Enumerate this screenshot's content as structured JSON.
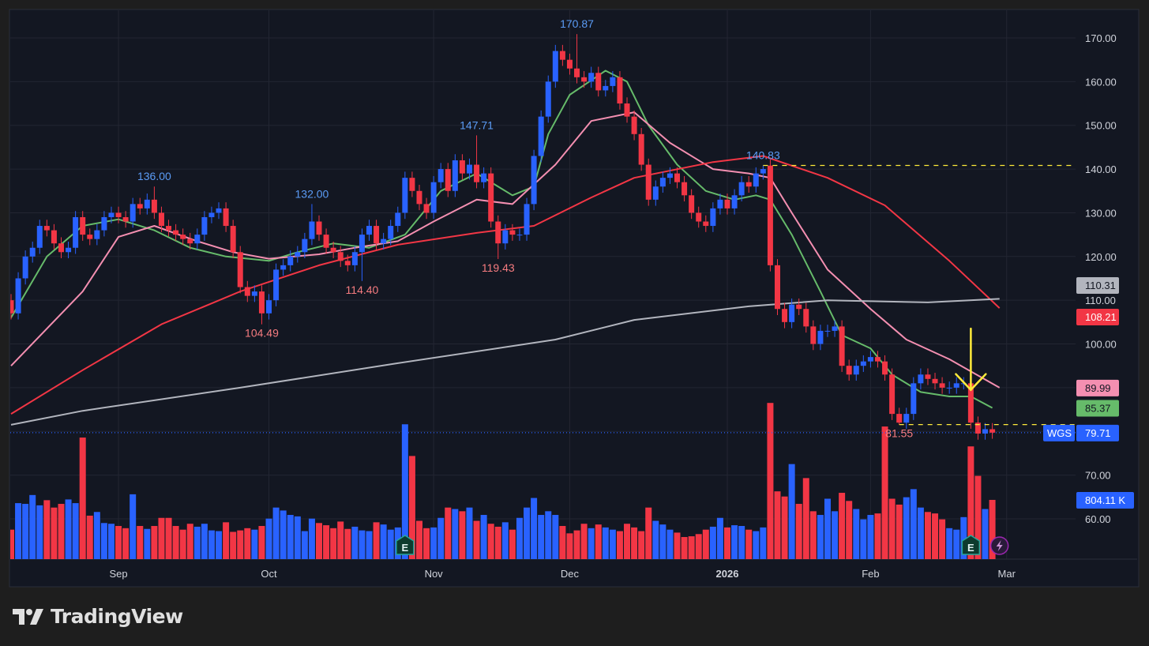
{
  "brand": {
    "name": "TradingView"
  },
  "symbol": "WGS",
  "colors": {
    "up": "#2962ff",
    "down": "#f23645",
    "ema_short": "#66bb6a",
    "ema_mid": "#f48fb1",
    "ma_50": "#f23645",
    "ma_200": "#b2b5be",
    "annotation": "#ffeb3b",
    "background": "#131722"
  },
  "chart_data": {
    "type": "candlestick",
    "y_axis": {
      "range": [
        55,
        175
      ],
      "ticks": [
        "60.00",
        "70.00",
        "100.00",
        "110.00",
        "120.00",
        "130.00",
        "140.00",
        "150.00",
        "160.00",
        "170.00"
      ],
      "tick_values": [
        60,
        70,
        100,
        110,
        120,
        130,
        140,
        150,
        160,
        170
      ]
    },
    "x_axis": {
      "labels": [
        {
          "text": "Sep",
          "index": 15
        },
        {
          "text": "Oct",
          "index": 36
        },
        {
          "text": "Nov",
          "index": 59
        },
        {
          "text": "Dec",
          "index": 78
        },
        {
          "text": "2026",
          "index": 100,
          "bold": true
        },
        {
          "text": "Feb",
          "index": 120
        },
        {
          "text": "Mar",
          "index": 139
        }
      ]
    },
    "grid": true,
    "open": [
      110,
      107,
      115,
      120,
      122,
      127,
      126,
      123,
      121,
      122,
      129,
      125,
      124,
      126,
      129,
      130,
      129,
      128,
      132,
      131,
      133,
      130,
      127,
      126,
      125,
      124,
      123,
      125,
      129,
      130,
      131,
      127,
      121,
      113,
      111,
      112,
      107,
      110,
      117,
      118,
      120,
      121,
      124,
      128,
      125,
      122,
      121,
      119,
      118,
      121,
      125,
      127,
      123,
      124,
      127,
      130,
      138,
      135,
      132,
      130,
      137,
      140,
      135,
      142,
      139,
      141,
      137,
      139,
      128,
      123,
      126,
      125,
      125,
      132,
      143,
      152,
      160,
      167,
      165,
      163,
      161,
      160,
      162,
      158,
      159,
      161,
      155,
      152,
      148,
      141,
      133,
      136,
      138,
      139,
      137,
      134,
      130,
      128,
      127,
      131,
      133,
      131,
      134,
      137,
      136,
      139,
      140.8,
      118,
      108,
      105,
      109,
      108,
      104,
      100,
      103,
      103,
      104,
      95,
      93,
      95,
      96,
      97,
      96,
      93,
      84,
      82,
      84,
      91,
      93,
      92,
      91,
      90,
      90,
      91,
      91,
      82,
      79.5,
      80.5
    ],
    "close": [
      107,
      115,
      120,
      122,
      127,
      126,
      123,
      121,
      122,
      129,
      125,
      124,
      126,
      129,
      130,
      129,
      128,
      132,
      131,
      133,
      130,
      127,
      126,
      125,
      124,
      123,
      125,
      129,
      130,
      131,
      127,
      121,
      113,
      111,
      112,
      107,
      110,
      117,
      118,
      120,
      121,
      124,
      128,
      125,
      122,
      121,
      119,
      118,
      121,
      125,
      127,
      123,
      124,
      127,
      130,
      138,
      135,
      132,
      130,
      137,
      140,
      135,
      142,
      139,
      141,
      137,
      139,
      128,
      123,
      126,
      125,
      125,
      132,
      143,
      152,
      160,
      167,
      165,
      163,
      161,
      160,
      162,
      158,
      159,
      161,
      155,
      152,
      148,
      141,
      133,
      136,
      138,
      139,
      137,
      134,
      130,
      128,
      127,
      131,
      133,
      131,
      134,
      137,
      136,
      139,
      140,
      118,
      108,
      105,
      109,
      108,
      104,
      100,
      103,
      103,
      104,
      95,
      93,
      95,
      96,
      97,
      96,
      93,
      84,
      82,
      84,
      91,
      93,
      92,
      91,
      90,
      90,
      91,
      91,
      82,
      79.5,
      80.5,
      79.71
    ],
    "volume_k": [
      400,
      760,
      750,
      870,
      730,
      800,
      700,
      750,
      810,
      760,
      1650,
      590,
      640,
      490,
      480,
      450,
      420,
      880,
      450,
      410,
      450,
      560,
      560,
      450,
      400,
      480,
      440,
      480,
      390,
      380,
      500,
      370,
      390,
      420,
      400,
      450,
      550,
      700,
      660,
      600,
      580,
      380,
      550,
      490,
      460,
      420,
      510,
      410,
      440,
      390,
      380,
      500,
      470,
      400,
      430,
      1830,
      1400,
      520,
      420,
      430,
      560,
      700,
      680,
      650,
      700,
      520,
      600,
      480,
      440,
      500,
      400,
      560,
      700,
      830,
      600,
      650,
      600,
      450,
      350,
      390,
      480,
      420,
      470,
      430,
      400,
      380,
      480,
      430,
      380,
      700,
      520,
      470,
      400,
      360,
      300,
      310,
      340,
      400,
      440,
      560,
      430,
      460,
      450,
      400,
      380,
      430,
      2120,
      920,
      850,
      1290,
      750,
      1100,
      650,
      600,
      820,
      650,
      900,
      790,
      680,
      540,
      600,
      620,
      1800,
      820,
      740,
      840,
      950,
      700,
      640,
      620,
      540,
      420,
      400,
      570,
      1530,
      1130,
      680,
      804.11
    ],
    "extremes": [
      {
        "type": "high",
        "index": 20,
        "value": 136.0,
        "label": "136.00"
      },
      {
        "type": "high",
        "index": 42,
        "value": 132.0,
        "label": "132.00"
      },
      {
        "type": "high",
        "index": 65,
        "value": 147.71,
        "label": "147.71"
      },
      {
        "type": "high",
        "index": 79,
        "value": 170.87,
        "label": "170.87"
      },
      {
        "type": "high",
        "index": 105,
        "value": 140.83,
        "label": "140.83"
      },
      {
        "type": "low",
        "index": 35,
        "value": 104.49,
        "label": "104.49"
      },
      {
        "type": "low",
        "index": 49,
        "value": 114.4,
        "label": "114.40"
      },
      {
        "type": "low",
        "index": 68,
        "value": 119.43,
        "label": "119.43"
      },
      {
        "type": "low",
        "index": 124,
        "value": 81.55,
        "label": "81.55"
      }
    ],
    "moving_averages": [
      {
        "color": "#66bb6a",
        "last": "85.37",
        "points": [
          [
            0,
            106
          ],
          [
            5,
            120
          ],
          [
            10,
            127
          ],
          [
            15,
            128.5
          ],
          [
            20,
            126
          ],
          [
            25,
            122
          ],
          [
            30,
            120
          ],
          [
            36,
            119
          ],
          [
            40,
            121
          ],
          [
            45,
            123
          ],
          [
            50,
            122
          ],
          [
            55,
            125
          ],
          [
            60,
            135
          ],
          [
            65,
            139
          ],
          [
            70,
            134
          ],
          [
            73,
            136
          ],
          [
            75,
            148
          ],
          [
            78,
            157
          ],
          [
            83,
            162.5
          ],
          [
            86,
            160
          ],
          [
            89,
            150
          ],
          [
            93,
            141
          ],
          [
            97,
            135
          ],
          [
            101,
            133
          ],
          [
            104,
            134
          ],
          [
            106,
            133
          ],
          [
            109,
            125
          ],
          [
            113,
            112
          ],
          [
            116,
            102
          ],
          [
            120,
            99
          ],
          [
            123,
            93
          ],
          [
            127,
            89
          ],
          [
            131,
            88
          ],
          [
            134,
            88
          ],
          [
            137,
            85.37
          ]
        ]
      },
      {
        "color": "#f48fb1",
        "last": "89.99",
        "points": [
          [
            0,
            95
          ],
          [
            10,
            112
          ],
          [
            15,
            124.5
          ],
          [
            20,
            127
          ],
          [
            26,
            123.5
          ],
          [
            31,
            121
          ],
          [
            36,
            119.5
          ],
          [
            43,
            120.5
          ],
          [
            48,
            122
          ],
          [
            54,
            123.5
          ],
          [
            59,
            128
          ],
          [
            65,
            133
          ],
          [
            70,
            132
          ],
          [
            76,
            141
          ],
          [
            81,
            151
          ],
          [
            87,
            153
          ],
          [
            92,
            146
          ],
          [
            98,
            140
          ],
          [
            103,
            139
          ],
          [
            106,
            138
          ],
          [
            109,
            130
          ],
          [
            114,
            117
          ],
          [
            120,
            108
          ],
          [
            125,
            101
          ],
          [
            131,
            96.5
          ],
          [
            138,
            89.99
          ]
        ]
      },
      {
        "color": "#f23645",
        "last": "108.21",
        "points": [
          [
            0,
            84
          ],
          [
            10,
            94
          ],
          [
            21,
            104.5
          ],
          [
            32,
            112
          ],
          [
            43,
            118
          ],
          [
            54,
            122.7
          ],
          [
            65,
            125.4
          ],
          [
            73,
            127
          ],
          [
            81,
            133.5
          ],
          [
            87,
            138
          ],
          [
            98,
            141.6
          ],
          [
            105,
            143
          ],
          [
            114,
            138
          ],
          [
            122,
            131.7
          ],
          [
            131,
            119
          ],
          [
            138,
            108.21
          ]
        ]
      },
      {
        "color": "#b2b5be",
        "last": "110.31",
        "points": [
          [
            0,
            81.5
          ],
          [
            10,
            84.7
          ],
          [
            32,
            90
          ],
          [
            54,
            95.6
          ],
          [
            76,
            101
          ],
          [
            87,
            105.5
          ],
          [
            103,
            108.6
          ],
          [
            114,
            110
          ],
          [
            128,
            109.5
          ],
          [
            138,
            110.31
          ]
        ]
      }
    ],
    "last_price": "79.71",
    "last_volume": "804.11 K",
    "levels": [
      {
        "value": 140.83,
        "from_index": 105
      },
      {
        "value": 81.55,
        "from_index": 124
      }
    ],
    "markers": [
      {
        "type": "earnings",
        "index": 55,
        "label": "E"
      },
      {
        "type": "earnings",
        "index": 134,
        "label": "E"
      },
      {
        "type": "dividend-split-lightning",
        "index": 138
      }
    ],
    "arrow": {
      "index": 134,
      "from": 103.5,
      "to": 89.5
    }
  }
}
